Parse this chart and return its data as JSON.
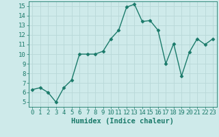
{
  "x": [
    0,
    1,
    2,
    3,
    4,
    5,
    6,
    7,
    8,
    9,
    10,
    11,
    12,
    13,
    14,
    15,
    16,
    17,
    18,
    19,
    20,
    21,
    22,
    23
  ],
  "y": [
    6.3,
    6.5,
    6.0,
    5.0,
    6.5,
    7.3,
    10.0,
    10.0,
    10.0,
    10.3,
    11.6,
    12.5,
    14.9,
    15.2,
    13.4,
    13.5,
    12.5,
    9.0,
    11.1,
    7.7,
    10.2,
    11.6,
    11.0,
    11.6
  ],
  "line_color": "#1a7a6a",
  "marker": "D",
  "marker_size": 2.5,
  "line_width": 1.0,
  "xlabel": "Humidex (Indice chaleur)",
  "xlim": [
    -0.5,
    23.5
  ],
  "ylim": [
    4.5,
    15.5
  ],
  "yticks": [
    5,
    6,
    7,
    8,
    9,
    10,
    11,
    12,
    13,
    14,
    15
  ],
  "xticks": [
    0,
    1,
    2,
    3,
    4,
    5,
    6,
    7,
    8,
    9,
    10,
    11,
    12,
    13,
    14,
    15,
    16,
    17,
    18,
    19,
    20,
    21,
    22,
    23
  ],
  "background_color": "#ceeaea",
  "grid_color": "#b8d8d8",
  "tick_color": "#1a7a6a",
  "label_color": "#1a7a6a",
  "font_size_xlabel": 7.5,
  "font_size_ticks": 6.5
}
